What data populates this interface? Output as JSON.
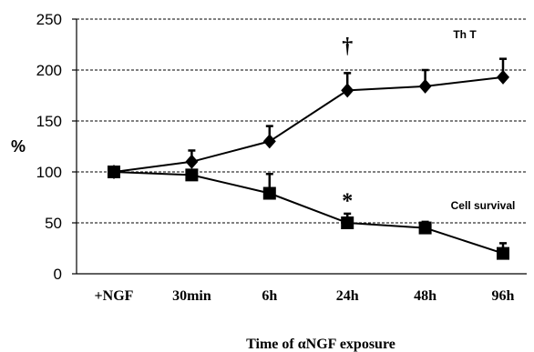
{
  "chart_data": {
    "type": "line",
    "categories": [
      "+NGF",
      "30min",
      "6h",
      "24h",
      "48h",
      "96h"
    ],
    "xlabel": "Time of αNGF exposure",
    "ylabel": "%",
    "ylim": [
      0,
      250
    ],
    "yticks": [
      0,
      50,
      100,
      150,
      200,
      250
    ],
    "grid": "horizontal dashed",
    "series": [
      {
        "name": "Th T",
        "marker": "diamond",
        "values": [
          100,
          110,
          130,
          180,
          184,
          193
        ],
        "error_upper": [
          100,
          121,
          145,
          197,
          200,
          211
        ]
      },
      {
        "name": "Cell survival",
        "marker": "square",
        "values": [
          100,
          97,
          79,
          50,
          45,
          20
        ],
        "error_upper": [
          100,
          97,
          98,
          59,
          51,
          30
        ]
      }
    ],
    "annotations": [
      {
        "text": "†",
        "category": "24h",
        "y": 224
      },
      {
        "text": "*",
        "category": "24h",
        "y": 72
      }
    ],
    "colors": {
      "line": "#000000",
      "background": "#ffffff"
    }
  }
}
